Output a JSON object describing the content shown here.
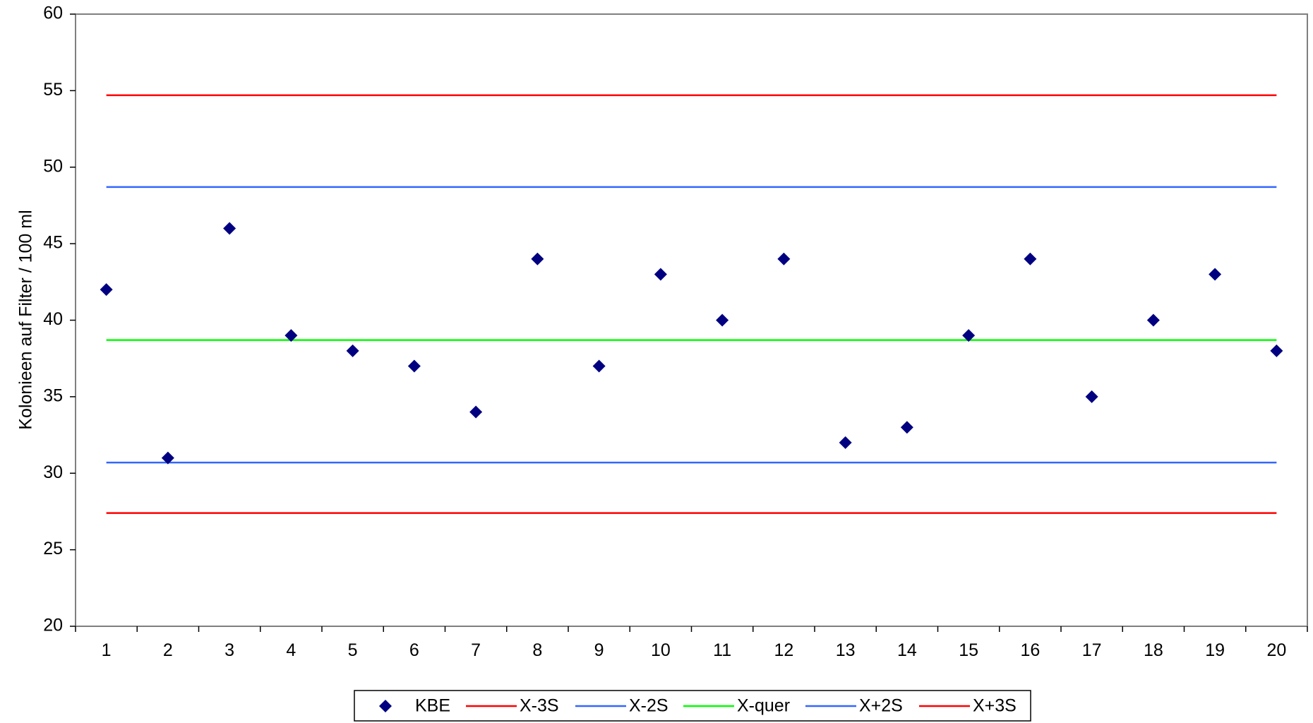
{
  "chart_data": {
    "type": "scatter",
    "title": "",
    "xlabel": "",
    "ylabel": "Kolonieen auf Filter / 100 ml",
    "x": [
      1,
      2,
      3,
      4,
      5,
      6,
      7,
      8,
      9,
      10,
      11,
      12,
      13,
      14,
      15,
      16,
      17,
      18,
      19,
      20
    ],
    "xlim": [
      0.5,
      20.5
    ],
    "ylim": [
      20,
      60
    ],
    "yticks": [
      20,
      25,
      30,
      35,
      40,
      45,
      50,
      55,
      60
    ],
    "grid": false,
    "legend_position": "bottom",
    "series": [
      {
        "name": "KBE",
        "kind": "marker",
        "marker": "diamond",
        "color": "#000080",
        "values": [
          42,
          31,
          46,
          39,
          38,
          37,
          34,
          44,
          37,
          43,
          40,
          44,
          32,
          33,
          39,
          44,
          35,
          40,
          43,
          38
        ]
      },
      {
        "name": "X-3S",
        "kind": "hline",
        "color": "#ff0000",
        "value": 27.4
      },
      {
        "name": "X-2S",
        "kind": "hline",
        "color": "#3366ff",
        "value": 30.7
      },
      {
        "name": "X-quer",
        "kind": "hline",
        "color": "#00ff00",
        "value": 38.7
      },
      {
        "name": "X+2S",
        "kind": "hline",
        "color": "#3366ff",
        "value": 48.7
      },
      {
        "name": "X+3S",
        "kind": "hline",
        "color": "#ff0000",
        "value": 54.7
      }
    ]
  }
}
